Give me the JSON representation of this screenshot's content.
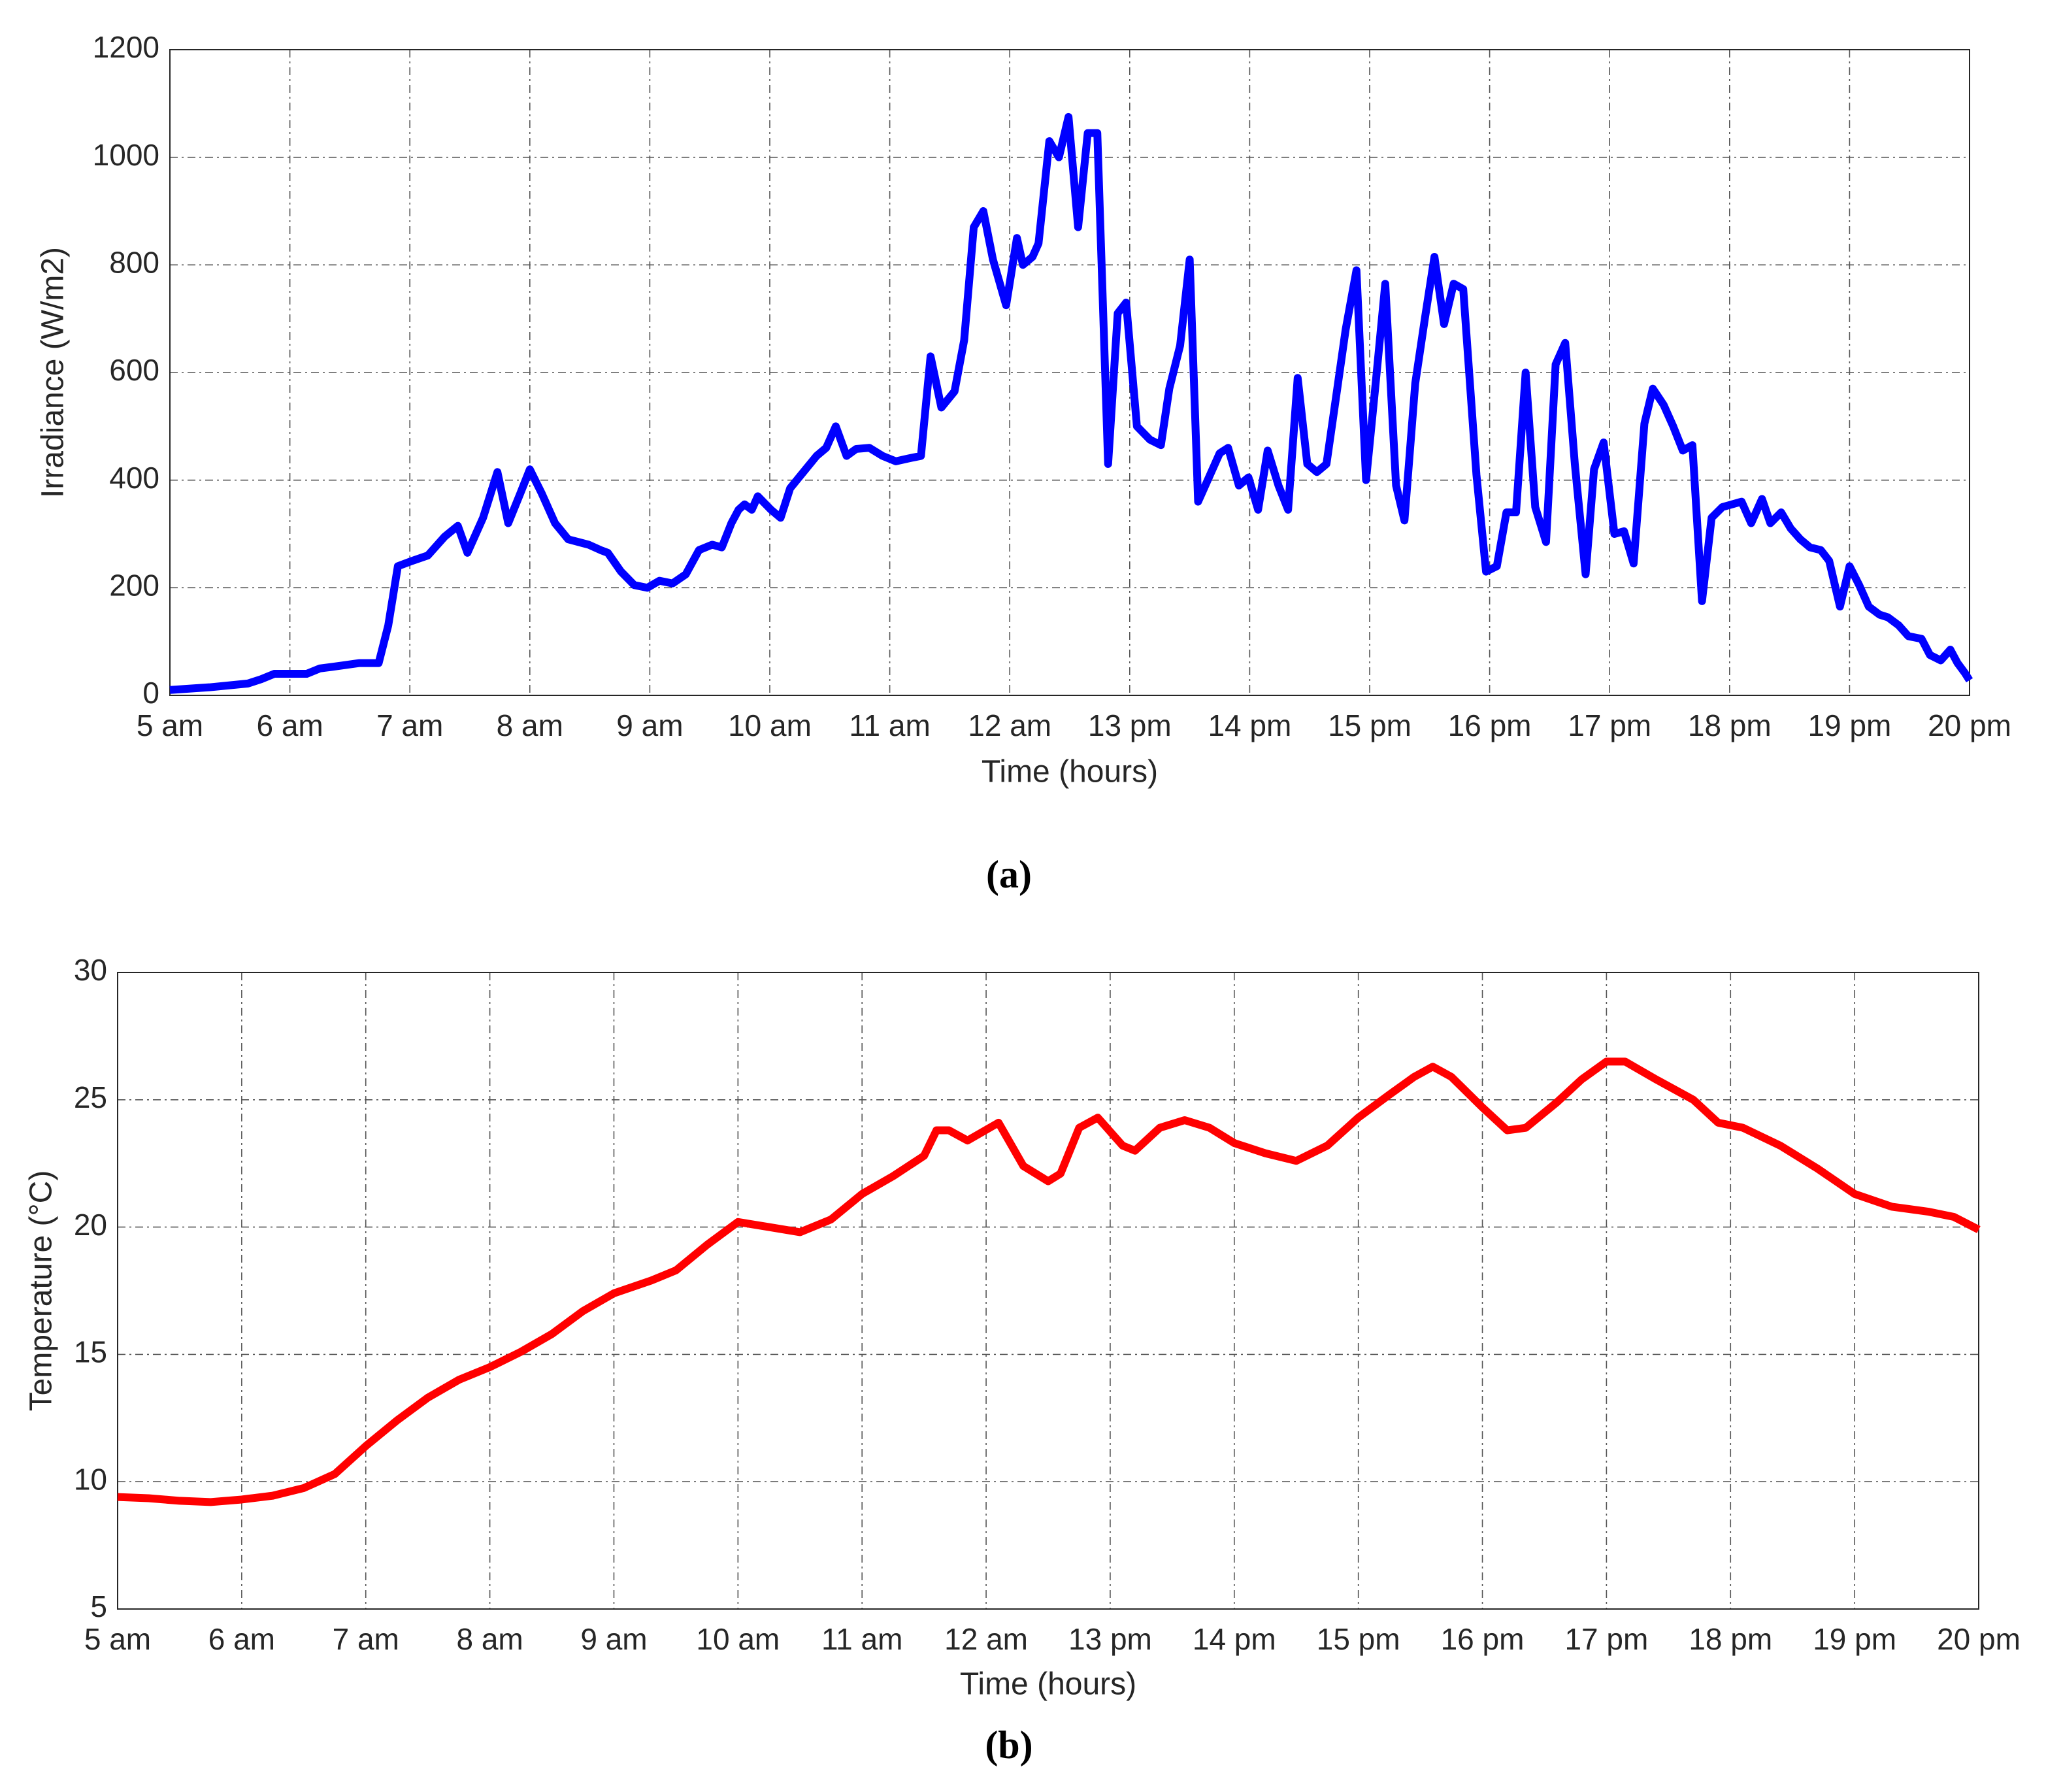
{
  "chart_data": [
    {
      "type": "line",
      "xlabel": "Time (hours)",
      "ylabel": "Irradiance (W/m2)",
      "caption": "(a)",
      "x": [
        5.0,
        5.33,
        5.65,
        5.76,
        5.87,
        6.03,
        6.14,
        6.25,
        6.42,
        6.58,
        6.74,
        6.82,
        6.9,
        7.02,
        7.15,
        7.29,
        7.4,
        7.48,
        7.61,
        7.73,
        7.82,
        7.92,
        8.0,
        8.1,
        8.21,
        8.32,
        8.49,
        8.59,
        8.65,
        8.76,
        8.87,
        8.98,
        9.08,
        9.19,
        9.3,
        9.41,
        9.52,
        9.6,
        9.68,
        9.74,
        9.79,
        9.85,
        9.9,
        10.01,
        10.09,
        10.17,
        10.28,
        10.39,
        10.47,
        10.55,
        10.64,
        10.72,
        10.83,
        10.94,
        11.05,
        11.15,
        11.26,
        11.34,
        11.43,
        11.54,
        11.62,
        11.7,
        11.78,
        11.86,
        11.97,
        12.06,
        12.11,
        12.19,
        12.24,
        12.33,
        12.41,
        12.49,
        12.57,
        12.65,
        12.73,
        12.82,
        12.9,
        12.97,
        13.06,
        13.17,
        13.26,
        13.33,
        13.42,
        13.5,
        13.57,
        13.66,
        13.75,
        13.82,
        13.91,
        13.99,
        14.07,
        14.15,
        14.24,
        14.32,
        14.4,
        14.48,
        14.56,
        14.64,
        14.73,
        14.8,
        14.89,
        14.97,
        15.05,
        15.13,
        15.22,
        15.29,
        15.38,
        15.46,
        15.54,
        15.62,
        15.7,
        15.78,
        15.89,
        15.97,
        16.06,
        16.14,
        16.22,
        16.3,
        16.38,
        16.47,
        16.55,
        16.63,
        16.71,
        16.8,
        16.87,
        16.95,
        17.04,
        17.12,
        17.2,
        17.29,
        17.36,
        17.45,
        17.53,
        17.61,
        17.69,
        17.77,
        17.85,
        17.94,
        18.02,
        18.1,
        18.18,
        18.27,
        18.34,
        18.43,
        18.51,
        18.59,
        18.67,
        18.76,
        18.83,
        18.92,
        19.0,
        19.08,
        19.16,
        19.25,
        19.32,
        19.41,
        19.49,
        19.6,
        19.67,
        19.76,
        19.84,
        19.9,
        19.96,
        20.0
      ],
      "series": [
        {
          "color": "#0000ff",
          "values": [
            10,
            15,
            22,
            30,
            40,
            40,
            40,
            50,
            55,
            60,
            60,
            130,
            240,
            250,
            260,
            295,
            315,
            265,
            330,
            415,
            320,
            375,
            420,
            375,
            320,
            290,
            280,
            270,
            265,
            230,
            205,
            200,
            213,
            208,
            225,
            270,
            280,
            275,
            320,
            345,
            355,
            345,
            370,
            345,
            330,
            385,
            415,
            445,
            460,
            500,
            445,
            458,
            460,
            445,
            435,
            440,
            445,
            630,
            535,
            565,
            660,
            870,
            900,
            810,
            725,
            850,
            800,
            815,
            840,
            1030,
            1000,
            1075,
            870,
            1045,
            1045,
            430,
            710,
            730,
            500,
            475,
            465,
            570,
            650,
            810,
            360,
            405,
            450,
            460,
            390,
            405,
            345,
            455,
            390,
            345,
            590,
            430,
            415,
            430,
            570,
            680,
            790,
            400,
            580,
            765,
            390,
            325,
            580,
            700,
            815,
            690,
            765,
            755,
            410,
            230,
            240,
            340,
            340,
            600,
            350,
            285,
            615,
            655,
            430,
            225,
            420,
            470,
            300,
            305,
            245,
            505,
            570,
            540,
            500,
            455,
            465,
            175,
            330,
            350,
            355,
            360,
            320,
            365,
            320,
            340,
            310,
            290,
            275,
            270,
            250,
            165,
            240,
            205,
            165,
            150,
            145,
            130,
            110,
            105,
            75,
            65,
            85,
            60,
            42,
            28
          ]
        }
      ],
      "xlim": [
        5,
        20
      ],
      "ylim": [
        0,
        1200
      ],
      "yticks": [
        0,
        200,
        400,
        600,
        800,
        1000,
        1200
      ],
      "xticks": [
        {
          "value": 5,
          "label": "5 am"
        },
        {
          "value": 6,
          "label": "6 am"
        },
        {
          "value": 7,
          "label": "7 am"
        },
        {
          "value": 8,
          "label": "8 am"
        },
        {
          "value": 9,
          "label": "9 am"
        },
        {
          "value": 10,
          "label": "10 am"
        },
        {
          "value": 11,
          "label": "11 am"
        },
        {
          "value": 12,
          "label": "12 am"
        },
        {
          "value": 13,
          "label": "13 pm"
        },
        {
          "value": 14,
          "label": "14 pm"
        },
        {
          "value": 15,
          "label": "15 pm"
        },
        {
          "value": 16,
          "label": "16 pm"
        },
        {
          "value": 17,
          "label": "17 pm"
        },
        {
          "value": 18,
          "label": "18 pm"
        },
        {
          "value": 19,
          "label": "19 pm"
        },
        {
          "value": 20,
          "label": "20 pm"
        }
      ],
      "grid": true
    },
    {
      "type": "line",
      "xlabel": "Time (hours)",
      "ylabel": "Temperature (°C)",
      "caption": "(b)",
      "x": [
        5.0,
        5.25,
        5.5,
        5.75,
        6.0,
        6.25,
        6.5,
        6.75,
        7.0,
        7.25,
        7.5,
        7.75,
        8.0,
        8.25,
        8.5,
        8.75,
        9.0,
        9.3,
        9.5,
        9.75,
        10.0,
        10.25,
        10.5,
        10.75,
        11.0,
        11.25,
        11.5,
        11.6,
        11.7,
        11.85,
        12.1,
        12.3,
        12.5,
        12.6,
        12.75,
        12.9,
        13.1,
        13.2,
        13.4,
        13.6,
        13.8,
        14.0,
        14.25,
        14.5,
        14.75,
        15.0,
        15.25,
        15.45,
        15.6,
        15.75,
        16.0,
        16.2,
        16.35,
        16.6,
        16.8,
        17.0,
        17.15,
        17.4,
        17.7,
        17.9,
        18.1,
        18.4,
        18.7,
        19.0,
        19.3,
        19.6,
        19.8,
        20.0
      ],
      "series": [
        {
          "color": "#ff0000",
          "values": [
            9.4,
            9.35,
            9.25,
            9.2,
            9.3,
            9.45,
            9.75,
            10.3,
            11.4,
            12.4,
            13.3,
            14.0,
            14.5,
            15.1,
            15.8,
            16.7,
            17.4,
            17.9,
            18.3,
            19.3,
            20.2,
            20.0,
            19.8,
            20.3,
            21.3,
            22.0,
            22.8,
            23.8,
            23.8,
            23.4,
            24.1,
            22.4,
            21.8,
            22.1,
            23.9,
            24.3,
            23.2,
            23.0,
            23.9,
            24.2,
            23.9,
            23.3,
            22.9,
            22.6,
            23.2,
            24.3,
            25.2,
            25.9,
            26.3,
            25.9,
            24.7,
            23.8,
            23.9,
            24.9,
            25.8,
            26.5,
            26.5,
            25.8,
            25.0,
            24.1,
            23.9,
            23.2,
            22.3,
            21.3,
            20.8,
            20.6,
            20.4,
            19.9
          ]
        }
      ],
      "xlim": [
        5,
        20
      ],
      "ylim": [
        5,
        30
      ],
      "yticks": [
        5,
        10,
        15,
        20,
        25,
        30
      ],
      "xticks": [
        {
          "value": 5,
          "label": "5 am"
        },
        {
          "value": 6,
          "label": "6 am"
        },
        {
          "value": 7,
          "label": "7 am"
        },
        {
          "value": 8,
          "label": "8 am"
        },
        {
          "value": 9,
          "label": "9 am"
        },
        {
          "value": 10,
          "label": "10 am"
        },
        {
          "value": 11,
          "label": "11 am"
        },
        {
          "value": 12,
          "label": "12 am"
        },
        {
          "value": 13,
          "label": "13 pm"
        },
        {
          "value": 14,
          "label": "14 pm"
        },
        {
          "value": 15,
          "label": "15 pm"
        },
        {
          "value": 16,
          "label": "16 pm"
        },
        {
          "value": 17,
          "label": "17 pm"
        },
        {
          "value": 18,
          "label": "18 pm"
        },
        {
          "value": 19,
          "label": "19 pm"
        },
        {
          "value": 20,
          "label": "20 pm"
        }
      ],
      "grid": true
    }
  ]
}
